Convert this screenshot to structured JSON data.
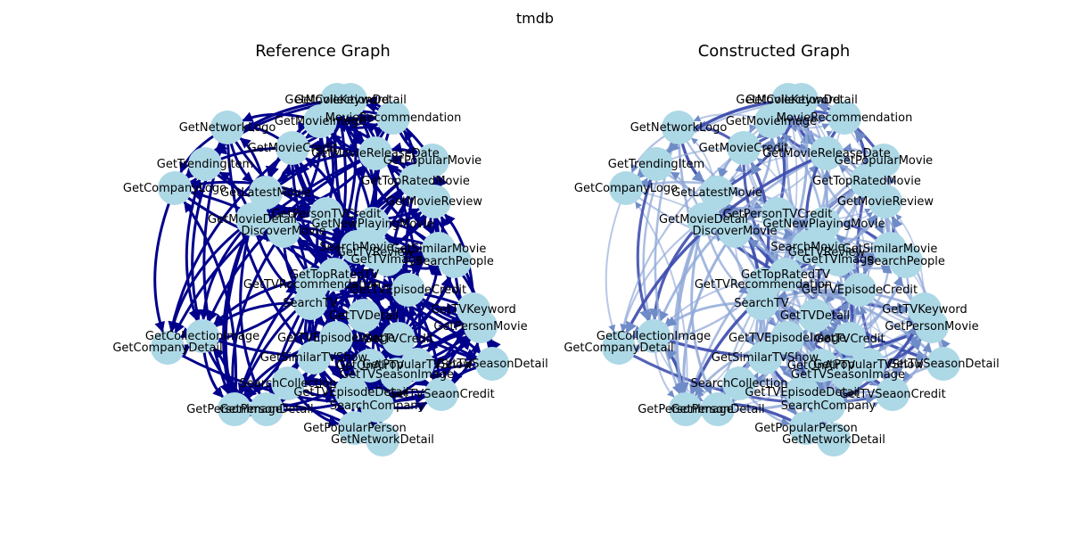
{
  "figure_title": "tmdb",
  "colors": {
    "background": "#ffffff",
    "node_fill": "#add8e6",
    "reference_edge": "#00008b",
    "constructed_edge_light": "#8fa8d8",
    "constructed_edge_dark": "#3c4cad"
  },
  "panels": [
    {
      "id": "reference",
      "title": "Reference Graph",
      "edge_style": "uniform-dark"
    },
    {
      "id": "constructed",
      "title": "Constructed Graph",
      "edge_style": "weighted-blue"
    }
  ],
  "nodes": [
    "GetCollectionDetail",
    "GetMovieKeyword",
    "GetMovieImage",
    "MovieRecommendation",
    "GetNetworkLogo",
    "GetMovieCredit",
    "GetMovieReleaseDate",
    "GetPopularMovie",
    "GetTrendingItem",
    "GetTopRatedMovie",
    "GetCompanyLogo",
    "GetLatestMovie",
    "GetMovieReview",
    "GetPersonTVCredit",
    "GetMovieDetail",
    "GetNewPlayingMovie",
    "DiscoverMovie",
    "SearchMovie",
    "GetSimilarMovie",
    "GetTVReview",
    "GetTVImage",
    "SearchPeople",
    "GetTopRatedTV",
    "GetTVRecommendation",
    "GetTVEpisodeCredit",
    "SearchTV",
    "GetTVKeyword",
    "GetTVDetail",
    "GetPersonMovie",
    "GetCollectionImage",
    "GetCompanyDetail",
    "GetTVEpisodeImage",
    "GetTVCredit",
    "GetSimilarTVShow",
    "GetOnAirTV",
    "GetPopularTVShow",
    "GetTVSeasonDetail",
    "GetTVSeasonImage",
    "SearchCollection",
    "GetTVEpisodeDetail",
    "GetTVSeaonCredit",
    "GetPersonImage",
    "GetPersonDetail",
    "SearchCompany",
    "GetPopularPerson",
    "GetNetworkDetail"
  ]
}
